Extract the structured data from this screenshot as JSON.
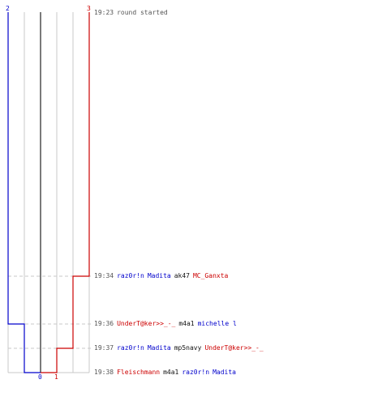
{
  "colors": {
    "team_blue": "#0000cc",
    "team_red": "#cc0000",
    "text_gray": "#555555",
    "text_black": "#111111",
    "grid": "#c8c8c8",
    "axis": "#7a7a7a",
    "dash": "#c8c8c8"
  },
  "scores": {
    "blue_top": "2",
    "red_top": "3",
    "blue_bottom": "0",
    "red_bottom": "1"
  },
  "events": [
    {
      "time": "19:23",
      "parts": [
        {
          "text": "round started",
          "team": "gray"
        }
      ]
    },
    {
      "time": "19:34",
      "parts": [
        {
          "text": "raz0r!n",
          "team": "blue"
        },
        {
          "text": "Madita",
          "team": "blue"
        },
        {
          "text": "ak47",
          "team": "black"
        },
        {
          "text": "MC_Ganxta",
          "team": "red"
        }
      ]
    },
    {
      "time": "19:36",
      "parts": [
        {
          "text": "UnderT@ker>>_-_",
          "team": "red"
        },
        {
          "text": "m4a1",
          "team": "black"
        },
        {
          "text": "michelle l",
          "team": "blue"
        }
      ]
    },
    {
      "time": "19:37",
      "parts": [
        {
          "text": "raz0r!n",
          "team": "blue"
        },
        {
          "text": "Madita",
          "team": "blue"
        },
        {
          "text": "mp5navy",
          "team": "black"
        },
        {
          "text": "UnderT@ker>>_-_",
          "team": "red"
        }
      ]
    },
    {
      "time": "19:38",
      "parts": [
        {
          "text": "Fleischmann",
          "team": "red"
        },
        {
          "text": "m4a1",
          "team": "black"
        },
        {
          "text": "raz0r!n",
          "team": "blue"
        },
        {
          "text": "Madita",
          "team": "blue"
        }
      ]
    }
  ]
}
